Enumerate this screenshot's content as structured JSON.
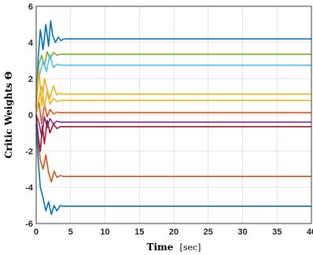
{
  "chart_data": {
    "type": "line",
    "title": "",
    "xlabel": "Time",
    "xlabel_unit": "[sec]",
    "ylabel": "Critic Weights Θ",
    "xlim": [
      0,
      40
    ],
    "ylim": [
      -6,
      6
    ],
    "xticks": [
      "0",
      "5",
      "10",
      "15",
      "20",
      "25",
      "30",
      "35",
      "40"
    ],
    "yticks": [
      "6",
      "4",
      "2",
      "0",
      "-2",
      "-4",
      "-6"
    ],
    "grid": true,
    "legend": "none",
    "series": [
      {
        "color": "#0072BD",
        "x": [
          0,
          0.3,
          0.6,
          1.0,
          1.4,
          1.8,
          2.1,
          2.4,
          2.8,
          3.2,
          3.6,
          4.0,
          5,
          10,
          20,
          30,
          40
        ],
        "y": [
          0.5,
          3.2,
          4.7,
          3.6,
          5.0,
          3.8,
          5.2,
          4.4,
          4.0,
          4.3,
          4.1,
          4.2,
          4.2,
          4.2,
          4.2,
          4.2,
          4.2
        ]
      },
      {
        "color": "#77AC30",
        "x": [
          0,
          0.4,
          0.8,
          1.2,
          1.6,
          2.0,
          2.5,
          3.0,
          3.5,
          4.0,
          5,
          10,
          20,
          30,
          40
        ],
        "y": [
          1.0,
          2.8,
          3.3,
          2.7,
          3.5,
          3.1,
          3.45,
          3.3,
          3.35,
          3.35,
          3.35,
          3.35,
          3.35,
          3.35,
          3.35
        ]
      },
      {
        "color": "#4DBEEE",
        "x": [
          0,
          0.5,
          1.0,
          1.5,
          2.0,
          2.5,
          3.0,
          3.5,
          4.0,
          5,
          10,
          20,
          30,
          40
        ],
        "y": [
          1.5,
          2.2,
          3.0,
          2.4,
          3.3,
          2.6,
          2.8,
          2.75,
          2.75,
          2.75,
          2.75,
          2.75,
          2.75,
          2.75
        ]
      },
      {
        "color": "#EDB120",
        "x": [
          0,
          0.4,
          0.8,
          1.2,
          1.6,
          2.0,
          2.5,
          3.0,
          3.5,
          4.0,
          5,
          10,
          20,
          30,
          40
        ],
        "y": [
          0.3,
          2.5,
          0.5,
          2.0,
          1.4,
          0.9,
          1.6,
          1.1,
          1.2,
          1.15,
          1.15,
          1.15,
          1.15,
          1.15,
          1.15
        ]
      },
      {
        "color": "#D95319",
        "x": [
          0,
          0.3,
          0.6,
          1.0,
          1.4,
          1.8,
          2.2,
          2.6,
          3.0,
          3.5,
          4.0,
          5,
          10,
          20,
          30,
          40
        ],
        "y": [
          0.0,
          -1.5,
          -2.5,
          -3.0,
          -2.2,
          -3.2,
          -3.7,
          -3.1,
          -3.45,
          -3.35,
          -3.4,
          -3.4,
          -3.4,
          -3.4,
          -3.4,
          -3.4
        ]
      },
      {
        "color": "#D95319",
        "x": [
          0,
          0.4,
          0.8,
          1.2,
          1.6,
          2.0,
          2.5,
          3.0,
          3.5,
          4.0,
          5,
          10,
          20,
          30,
          40
        ],
        "y": [
          0.1,
          0.7,
          -0.5,
          0.6,
          -0.1,
          0.3,
          0.05,
          0.15,
          0.12,
          0.12,
          0.12,
          0.12,
          0.12,
          0.12,
          0.12
        ]
      },
      {
        "color": "#EDB120",
        "x": [
          0,
          0.4,
          0.8,
          1.2,
          1.6,
          2.0,
          2.5,
          3.0,
          3.5,
          4.0,
          5,
          10,
          20,
          30,
          40
        ],
        "y": [
          0.0,
          0.9,
          1.6,
          0.4,
          1.3,
          0.6,
          0.9,
          0.75,
          0.8,
          0.8,
          0.8,
          0.8,
          0.8,
          0.8,
          0.8
        ]
      },
      {
        "color": "#7E2F8E",
        "x": [
          0,
          0.4,
          0.8,
          1.2,
          1.6,
          2.0,
          2.5,
          3.0,
          3.5,
          4.0,
          5,
          10,
          20,
          30,
          40
        ],
        "y": [
          0.0,
          -0.4,
          -1.2,
          -0.1,
          -0.7,
          -0.2,
          -0.5,
          -0.35,
          -0.4,
          -0.4,
          -0.4,
          -0.4,
          -0.4,
          -0.4,
          -0.4
        ]
      },
      {
        "color": "#A2142F",
        "x": [
          0,
          0.3,
          0.6,
          0.9,
          1.2,
          1.6,
          2.0,
          2.5,
          3.0,
          3.5,
          4.0,
          5,
          10,
          20,
          30,
          40
        ],
        "y": [
          0.0,
          -1.2,
          -2.0,
          -0.6,
          -1.6,
          -0.3,
          -1.0,
          -0.5,
          -0.75,
          -0.65,
          -0.65,
          -0.65,
          -0.65,
          -0.65,
          -0.65,
          -0.65
        ]
      },
      {
        "color": "#0072BD",
        "x": [
          0,
          0.3,
          0.6,
          1.0,
          1.4,
          1.8,
          2.2,
          2.6,
          3.0,
          3.5,
          4.0,
          5,
          10,
          20,
          30,
          40
        ],
        "y": [
          -0.5,
          -2.5,
          -4.0,
          -4.6,
          -5.3,
          -4.8,
          -5.5,
          -5.0,
          -5.3,
          -5.0,
          -5.05,
          -5.05,
          -5.05,
          -5.05,
          -5.05,
          -5.05
        ]
      }
    ]
  }
}
